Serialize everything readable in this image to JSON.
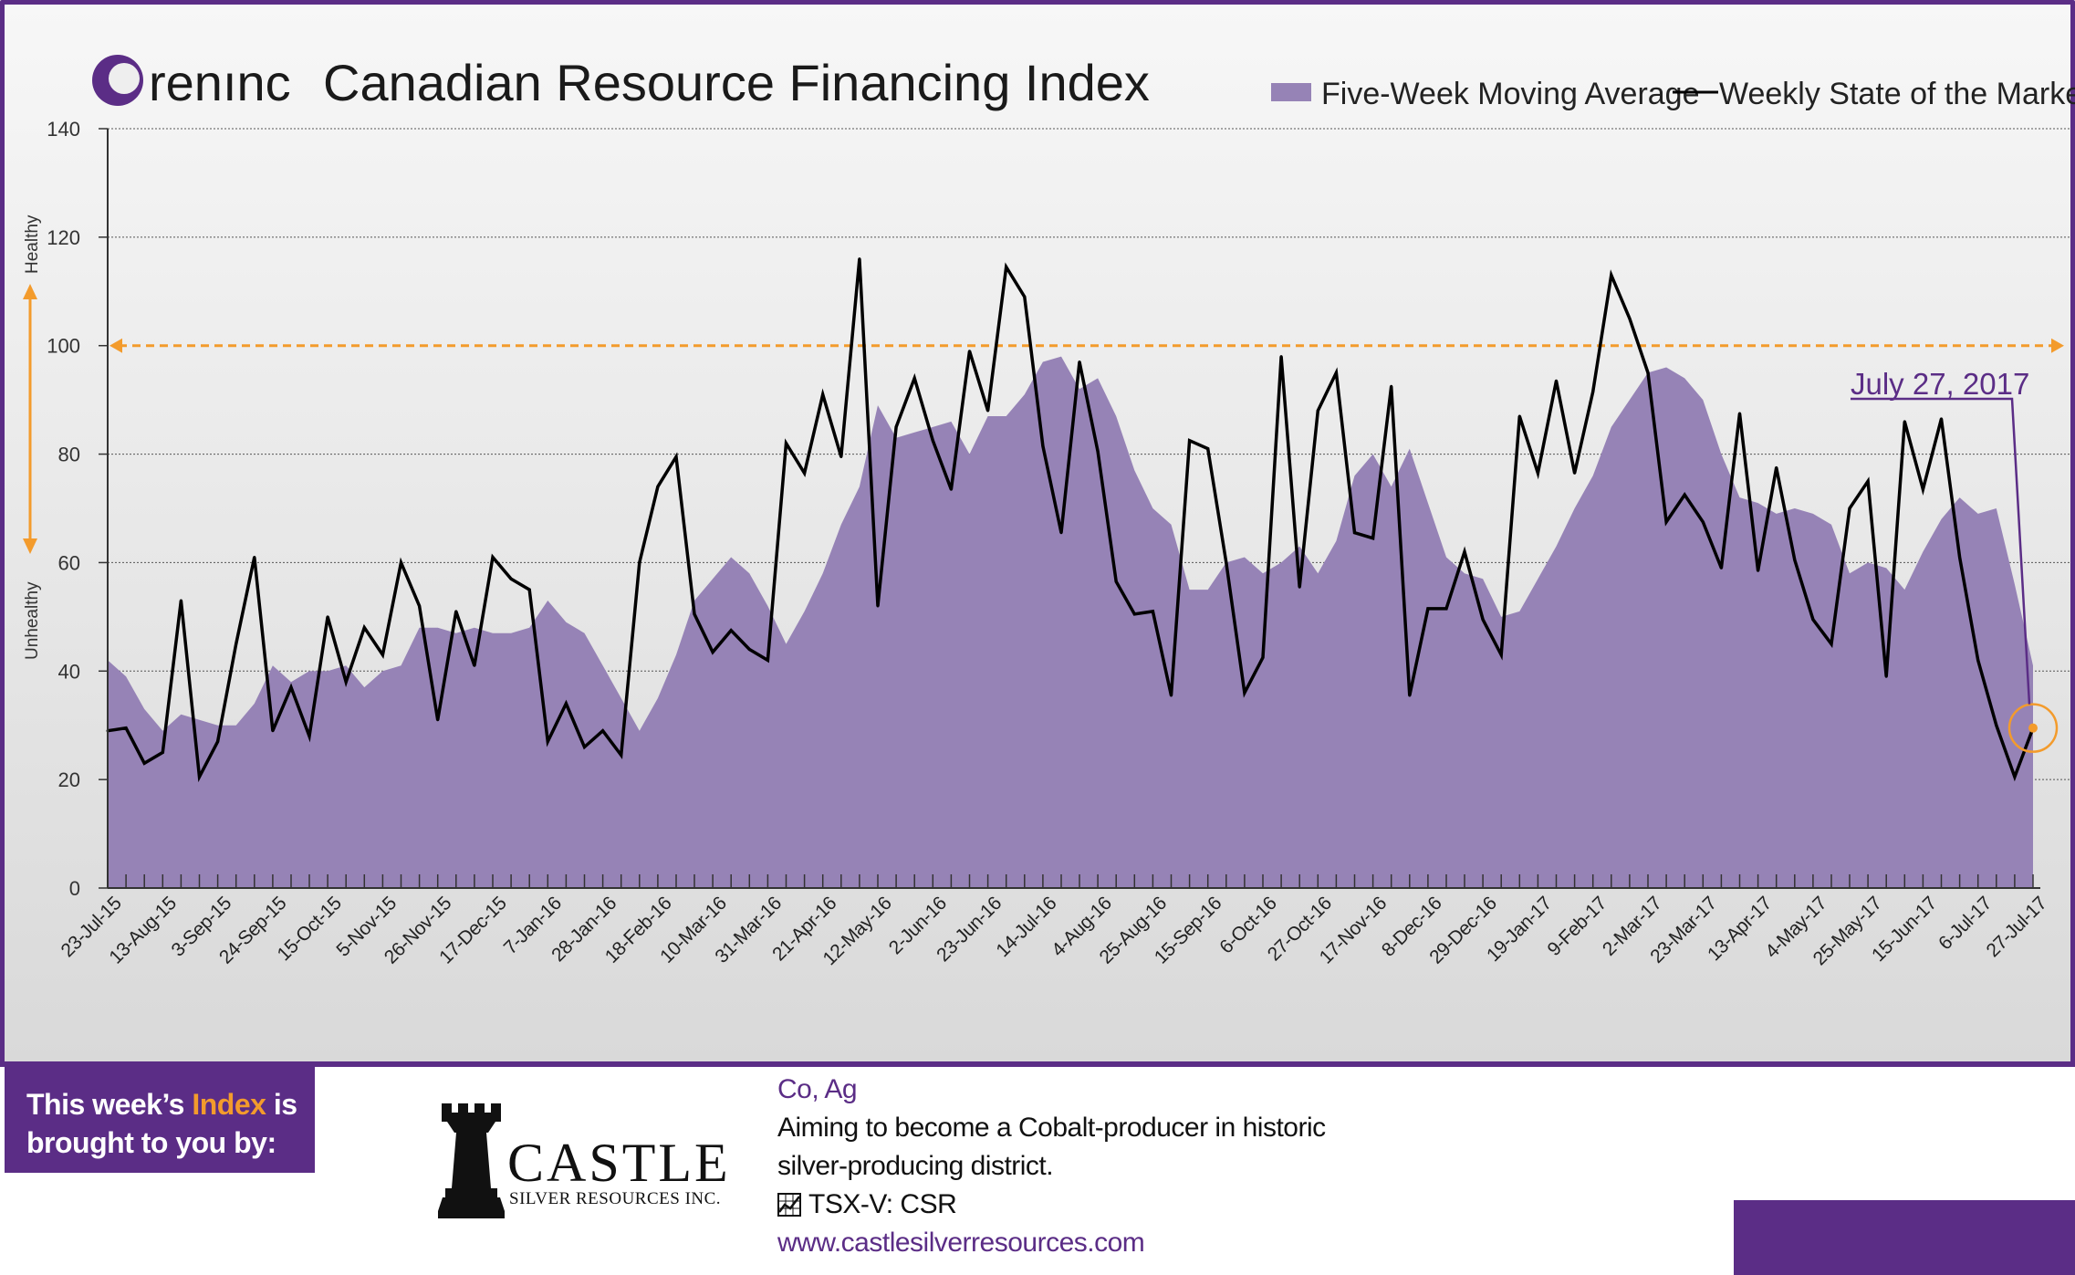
{
  "brand": {
    "logo_text": "renınc",
    "title": "Canadian Resource Financing Index"
  },
  "legend": {
    "area_label": "Five-Week Moving Average",
    "line_label": "Weekly State of the Market"
  },
  "side_labels": {
    "top": "Healthy",
    "bottom": "Unhealthy"
  },
  "callout": {
    "label": "July 27, 2017"
  },
  "colors": {
    "area": "#9683b6",
    "line": "#000000",
    "threshold": "#f39b2c",
    "brand": "#5b2d86",
    "highlight": "#f39b2c"
  },
  "sponsor": {
    "intro_pre": "This week’s",
    "intro_highlight": "Index",
    "intro_post": "is",
    "intro_line2": "brought to you by:",
    "company_name": "CASTLE",
    "company_sub": "SILVER RESOURCES INC.",
    "metals": "Co, Ag",
    "description_line1": "Aiming to become a Cobalt-producer in historic",
    "description_line2": "silver-producing district.",
    "ticker_label": "TSX-V:",
    "ticker_symbol": "CSR",
    "url": "www.castlesilverresources.com"
  },
  "chart_data": {
    "type": "line",
    "title": "Canadian Resource Financing Index",
    "ylim": [
      0,
      140
    ],
    "yticks": [
      0,
      20,
      40,
      60,
      80,
      100,
      120,
      140
    ],
    "threshold": 100,
    "grid": true,
    "legend_position": "top-right",
    "x_tick_labels": [
      "23-Jul-15",
      "13-Aug-15",
      "3-Sep-15",
      "24-Sep-15",
      "15-Oct-15",
      "5-Nov-15",
      "26-Nov-15",
      "17-Dec-15",
      "7-Jan-16",
      "28-Jan-16",
      "18-Feb-16",
      "10-Mar-16",
      "31-Mar-16",
      "21-Apr-16",
      "12-May-16",
      "2-Jun-16",
      "23-Jun-16",
      "14-Jul-16",
      "4-Aug-16",
      "25-Aug-16",
      "15-Sep-16",
      "6-Oct-16",
      "27-Oct-16",
      "17-Nov-16",
      "8-Dec-16",
      "29-Dec-16",
      "19-Jan-17",
      "9-Feb-17",
      "2-Mar-17",
      "23-Mar-17",
      "13-Apr-17",
      "4-May-17",
      "25-May-17",
      "15-Jun-17",
      "6-Jul-17",
      "27-Jul-17"
    ],
    "highlight_index": 105,
    "series": [
      {
        "name": "Five-Week Moving Average",
        "kind": "area",
        "values": [
          42,
          39,
          33,
          29,
          32,
          31,
          30,
          30,
          34,
          41,
          38,
          40,
          40,
          41,
          37,
          40,
          41,
          48,
          48,
          47,
          48,
          47,
          47,
          48,
          53,
          49,
          47,
          41,
          35,
          29,
          35,
          43,
          53,
          57,
          61,
          58,
          52,
          45,
          51,
          58,
          67,
          74,
          89,
          83,
          84,
          85,
          86,
          80,
          87,
          87,
          91,
          97,
          98,
          92,
          94,
          87,
          77,
          70,
          67,
          55,
          55,
          60,
          61,
          58,
          60,
          63,
          58,
          64,
          76,
          80,
          74,
          81,
          71,
          61,
          58,
          57,
          50,
          51,
          57,
          63,
          70,
          76,
          85,
          90,
          95,
          96,
          94,
          90,
          80,
          72,
          71,
          69,
          70,
          69,
          67,
          58,
          60,
          59,
          55,
          62,
          68,
          72,
          69,
          70,
          56,
          41
        ]
      },
      {
        "name": "Weekly State of the Market",
        "kind": "line",
        "values": [
          29,
          29.5,
          23,
          25,
          53,
          20.5,
          27,
          45,
          61,
          29,
          37,
          28,
          50,
          38,
          48,
          43,
          60,
          52,
          31,
          51,
          41,
          61,
          57,
          55,
          27,
          34,
          26,
          29,
          24.5,
          60,
          74,
          79.5,
          50.5,
          43.5,
          47.5,
          44,
          42,
          82,
          76.5,
          91,
          79.5,
          116,
          52,
          85,
          94,
          82.5,
          73.5,
          99,
          88,
          114.5,
          109,
          81.5,
          65.5,
          97,
          80.5,
          56.5,
          50.5,
          51,
          35.5,
          82.5,
          81,
          60,
          36,
          42.5,
          98,
          55.5,
          88,
          95,
          65.5,
          64.5,
          92.5,
          35.5,
          51.5,
          51.5,
          62,
          49.5,
          43,
          87,
          76.5,
          93.5,
          76.5,
          91.5,
          113,
          105,
          95,
          67.5,
          72.5,
          67.5,
          59,
          87.5,
          58.5,
          77.5,
          60.5,
          49.5,
          45,
          70,
          75,
          39,
          86,
          73.5,
          86.5,
          61,
          42,
          30,
          20.5,
          29.5
        ]
      }
    ]
  }
}
